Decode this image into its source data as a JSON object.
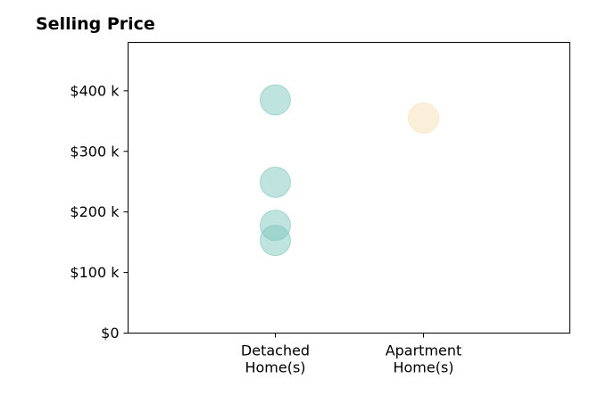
{
  "chart_data": {
    "type": "scatter",
    "title": "Selling Price",
    "xlabel": "",
    "ylabel": "",
    "categories": [
      [
        "Detached",
        "Home(s)"
      ],
      [
        "Apartment",
        "Home(s)"
      ]
    ],
    "ylim": [
      0,
      480000
    ],
    "y_ticks": [
      {
        "value": 0,
        "label": "$0"
      },
      {
        "value": 100000,
        "label": "$100 k"
      },
      {
        "value": 200000,
        "label": "$200 k"
      },
      {
        "value": 300000,
        "label": "$300 k"
      },
      {
        "value": 400000,
        "label": "$400 k"
      }
    ],
    "grid": false,
    "series": [
      {
        "category": 0,
        "color": "#7fc7be",
        "values": [
          385000,
          249000,
          178000,
          153000
        ]
      },
      {
        "category": 1,
        "color": "#f6e2b3",
        "values": [
          355000
        ]
      }
    ]
  }
}
